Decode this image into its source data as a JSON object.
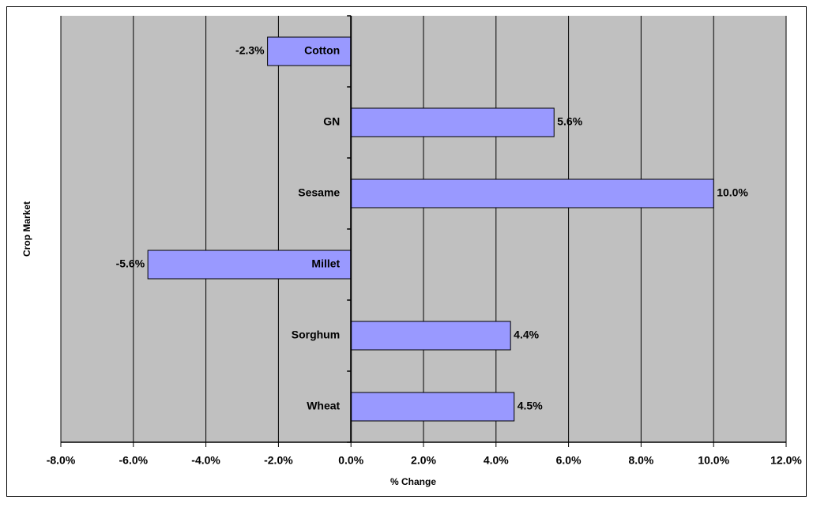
{
  "chart_data": {
    "type": "bar",
    "orientation": "horizontal",
    "x_label": "% Change",
    "y_label": "Crop Market",
    "categories": [
      "Cotton",
      "GN",
      "Sesame",
      "Millet",
      "Sorghum",
      "Wheat"
    ],
    "values": [
      -2.3,
      5.6,
      10.0,
      -5.6,
      4.4,
      4.5
    ],
    "value_labels": [
      "-2.3%",
      "5.6%",
      "10.0%",
      "-5.6%",
      "4.4%",
      "4.5%"
    ],
    "color": "#9999ff",
    "xlim": [
      -8,
      12
    ],
    "xticks": [
      {
        "value": -8,
        "label": "-8.0%"
      },
      {
        "value": -6,
        "label": "-6.0%"
      },
      {
        "value": -4,
        "label": "-4.0%"
      },
      {
        "value": -2,
        "label": "-2.0%"
      },
      {
        "value": 0,
        "label": "0.0%"
      },
      {
        "value": 2,
        "label": "2.0%"
      },
      {
        "value": 4,
        "label": "4.0%"
      },
      {
        "value": 6,
        "label": "6.0%"
      },
      {
        "value": 8,
        "label": "8.0%"
      },
      {
        "value": 10,
        "label": "10.0%"
      },
      {
        "value": 12,
        "label": "12.0%"
      }
    ],
    "grid": true
  }
}
